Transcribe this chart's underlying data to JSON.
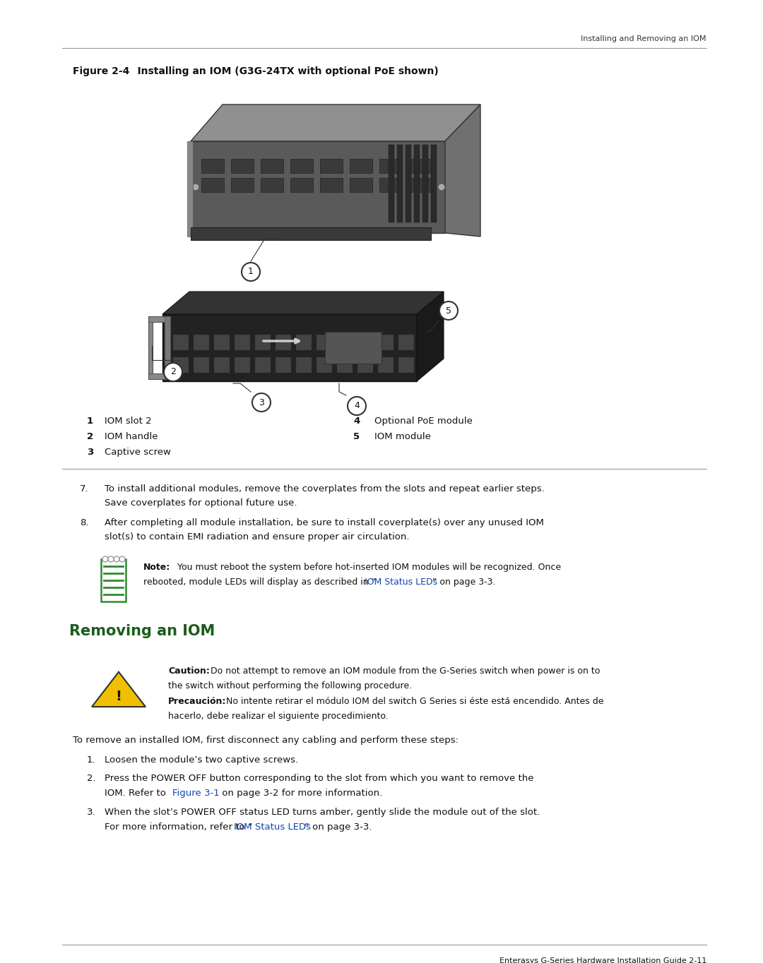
{
  "page_bg": "#ffffff",
  "header_text": "Installing and Removing an IOM",
  "figure_title_bold": "Figure 2-4",
  "figure_title_rest": "    Installing an IOM (G3G-24TX with optional PoE shown)",
  "legend_items_left": [
    {
      "num": "1",
      "text": "IOM slot 2"
    },
    {
      "num": "2",
      "text": "IOM handle"
    },
    {
      "num": "3",
      "text": "Captive screw"
    }
  ],
  "legend_items_right": [
    {
      "num": "4",
      "text": "Optional PoE module"
    },
    {
      "num": "5",
      "text": "IOM module"
    }
  ],
  "step7_text_line1": "To install additional modules, remove the coverplates from the slots and repeat earlier steps.",
  "step7_text_line2": "Save coverplates for optional future use.",
  "step8_text_line1": "After completing all module installation, be sure to install coverplate(s) over any unused IOM",
  "step8_text_line2": "slot(s) to contain EMI radiation and ensure proper air circulation.",
  "note_line1_before_link": "rebooted, module LEDs will display as described in “",
  "note_link": "IOM Status LEDs",
  "note_line1_after_link": "” on page 3-3.",
  "section_title": "Removing an IOM",
  "caution_line1": "Do not attempt to remove an IOM module from the G-Series switch when power is on to",
  "caution_line2": "the switch without performing the following procedure.",
  "precaucion_line1": "No intente retirar el módulo IOM del switch G Series si éste está encendido. Antes de",
  "precaucion_line2": "hacerlo, debe realizar el siguiente procedimiento.",
  "remove_intro": "To remove an installed IOM, first disconnect any cabling and perform these steps:",
  "remove_step1": "Loosen the module’s two captive screws.",
  "remove_step2_line1": "Press the POWER OFF button corresponding to the slot from which you want to remove the",
  "remove_step2_line2_pre": "IOM. Refer to ",
  "remove_step2_link": "Figure 3-1",
  "remove_step2_line2_post": " on page 3-2 for more information.",
  "remove_step3_line1": "When the slot’s POWER OFF status LED turns amber, gently slide the module out of the slot.",
  "remove_step3_line2_pre": "For more information, refer to “",
  "remove_step3_link": "IOM Status LEDs",
  "remove_step3_line2_post": "” on page 3-3.",
  "footer_text": "Enterasys G-Series Hardware Installation Guide 2-11",
  "section_color": "#1a5c1a",
  "link_color": "#1144aa",
  "text_color": "#111111",
  "header_color": "#333333",
  "note_green": "#2e8b2e",
  "caution_yellow": "#f0c000",
  "line_color": "#999999"
}
